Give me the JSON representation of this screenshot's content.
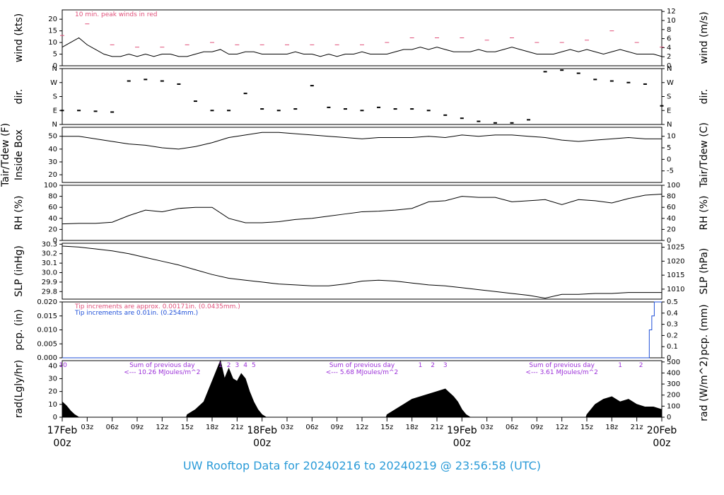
{
  "chart_data": [
    {
      "id": "wind",
      "type": "line",
      "ylabel_left": "wind (kts)",
      "ylabel_right": "wind (m/s)",
      "left_ticks": [
        "0",
        "5",
        "10",
        "15",
        "20"
      ],
      "right_ticks": [
        "0",
        "2",
        "4",
        "6",
        "8",
        "10",
        "12"
      ],
      "ylim": [
        0,
        24
      ],
      "annotation": "10 min. peak winds in red",
      "series": [
        {
          "color": "#000000",
          "x": [
            0,
            1,
            2,
            3,
            4,
            5,
            6,
            7,
            8,
            9,
            10,
            11,
            12,
            13,
            14,
            15,
            16,
            17,
            18,
            19,
            20,
            21,
            22,
            23,
            24,
            25,
            26,
            27,
            28,
            29,
            30,
            31,
            32,
            33,
            34,
            35,
            36,
            37,
            38,
            39,
            40,
            41,
            42,
            43,
            44,
            45,
            46,
            47,
            48,
            49,
            50,
            51,
            52,
            53,
            54,
            55,
            56,
            57,
            58,
            59,
            60,
            61,
            62,
            63,
            64,
            65,
            66,
            67,
            68,
            69,
            70,
            71,
            72
          ],
          "y": [
            8,
            10,
            12,
            9,
            7,
            5,
            4,
            4,
            5,
            4,
            5,
            4,
            5,
            5,
            4,
            4,
            5,
            6,
            6,
            7,
            5,
            5,
            6,
            6,
            5,
            5,
            5,
            5,
            6,
            5,
            5,
            4,
            5,
            4,
            5,
            5,
            6,
            5,
            5,
            5,
            6,
            7,
            7,
            8,
            7,
            8,
            7,
            6,
            6,
            6,
            7,
            6,
            6,
            7,
            8,
            7,
            6,
            5,
            5,
            5,
            6,
            7,
            6,
            7,
            6,
            5,
            6,
            7,
            6,
            5,
            5,
            5,
            4
          ]
        },
        {
          "color": "#e0507a",
          "x": [
            0,
            3,
            6,
            9,
            12,
            15,
            18,
            21,
            24,
            27,
            30,
            33,
            36,
            39,
            42,
            45,
            48,
            51,
            54,
            57,
            60,
            63,
            66,
            69,
            72
          ],
          "y": [
            13,
            18,
            9,
            8,
            8,
            9,
            10,
            9,
            9,
            9,
            9,
            9,
            9,
            10,
            12,
            12,
            12,
            11,
            12,
            10,
            10,
            11,
            15,
            10,
            8
          ]
        }
      ]
    },
    {
      "id": "dir",
      "type": "scatter",
      "ylabel_left": "dir.",
      "ylabel_right": "dir.",
      "left_ticks": [
        "N",
        "E",
        "S",
        "W",
        "N"
      ],
      "right_ticks": [
        "N",
        "E",
        "S",
        "W",
        "N"
      ],
      "ylim": [
        0,
        360
      ],
      "x": [
        0,
        2,
        4,
        6,
        8,
        10,
        12,
        14,
        16,
        18,
        20,
        22,
        24,
        26,
        28,
        30,
        32,
        34,
        36,
        38,
        40,
        42,
        44,
        46,
        48,
        50,
        52,
        54,
        56,
        58,
        60,
        62,
        64,
        66,
        68,
        70,
        72
      ],
      "y": [
        90,
        90,
        85,
        80,
        280,
        290,
        280,
        260,
        150,
        90,
        90,
        200,
        100,
        90,
        100,
        250,
        110,
        100,
        90,
        110,
        100,
        100,
        90,
        60,
        40,
        20,
        10,
        10,
        30,
        340,
        350,
        330,
        290,
        280,
        270,
        260,
        120
      ]
    },
    {
      "id": "temp",
      "type": "line",
      "ylabel_left": [
        "Tair/Tdew (F)",
        "Inside Box"
      ],
      "ylabel_right": "Tair/Tdew (C)",
      "left_ticks": [
        "20",
        "30",
        "40",
        "50"
      ],
      "right_ticks": [
        "-5",
        "0",
        "5",
        "10"
      ],
      "ylim": [
        14,
        57
      ],
      "series": [
        {
          "color": "#000000",
          "x": [
            0,
            2,
            4,
            6,
            8,
            10,
            12,
            14,
            16,
            18,
            20,
            22,
            24,
            26,
            28,
            30,
            32,
            34,
            36,
            38,
            40,
            42,
            44,
            46,
            48,
            50,
            52,
            54,
            56,
            58,
            60,
            62,
            64,
            66,
            68,
            70,
            72
          ],
          "y": [
            50,
            50,
            48,
            46,
            44,
            43,
            41,
            40,
            42,
            45,
            49,
            51,
            53,
            53,
            52,
            51,
            50,
            49,
            48,
            49,
            49,
            49,
            50,
            49,
            51,
            50,
            51,
            51,
            50,
            49,
            47,
            46,
            47,
            48,
            49,
            48,
            48
          ]
        }
      ]
    },
    {
      "id": "rh",
      "type": "line",
      "ylabel_left": "RH (%)",
      "ylabel_right": "RH (%)",
      "left_ticks": [
        "0",
        "20",
        "40",
        "60",
        "80",
        "100"
      ],
      "right_ticks": [
        "0",
        "20",
        "40",
        "60",
        "80",
        "100"
      ],
      "ylim": [
        0,
        100
      ],
      "series": [
        {
          "color": "#000000",
          "x": [
            0,
            2,
            4,
            6,
            8,
            10,
            12,
            14,
            16,
            18,
            20,
            22,
            24,
            26,
            28,
            30,
            32,
            34,
            36,
            38,
            40,
            42,
            44,
            46,
            48,
            50,
            52,
            54,
            56,
            58,
            60,
            62,
            64,
            66,
            68,
            70,
            72
          ],
          "y": [
            30,
            31,
            31,
            33,
            45,
            55,
            52,
            58,
            60,
            60,
            40,
            32,
            32,
            34,
            38,
            40,
            44,
            48,
            52,
            53,
            55,
            58,
            70,
            72,
            80,
            78,
            78,
            70,
            72,
            74,
            65,
            74,
            72,
            68,
            76,
            82,
            84
          ]
        }
      ]
    },
    {
      "id": "slp",
      "type": "line",
      "ylabel_left": "SLP (inHg)",
      "ylabel_right": "SLP (hPa)",
      "left_ticks": [
        "29.8",
        "29.9",
        "30.0",
        "30.1",
        "30.2",
        "30.3"
      ],
      "right_ticks": [
        "1010",
        "1015",
        "1020",
        "1025"
      ],
      "ylim": [
        29.72,
        30.31
      ],
      "series": [
        {
          "color": "#000000",
          "x": [
            0,
            2,
            4,
            6,
            8,
            10,
            12,
            14,
            16,
            18,
            20,
            22,
            24,
            26,
            28,
            30,
            32,
            34,
            36,
            38,
            40,
            42,
            44,
            46,
            48,
            50,
            52,
            54,
            56,
            58,
            60,
            62,
            64,
            66,
            68,
            70,
            72
          ],
          "y": [
            30.28,
            30.27,
            30.25,
            30.23,
            30.2,
            30.16,
            30.12,
            30.08,
            30.03,
            29.98,
            29.94,
            29.92,
            29.9,
            29.88,
            29.87,
            29.86,
            29.86,
            29.88,
            29.91,
            29.92,
            29.91,
            29.89,
            29.87,
            29.86,
            29.84,
            29.82,
            29.8,
            29.78,
            29.76,
            29.73,
            29.77,
            29.77,
            29.78,
            29.78,
            29.79,
            29.79,
            29.79
          ]
        }
      ]
    },
    {
      "id": "pcp",
      "type": "line",
      "ylabel_left": "pcp. (in)",
      "ylabel_right": "pcp. (mm)",
      "left_ticks": [
        "0.000",
        "0.005",
        "0.010",
        "0.015",
        "0.020"
      ],
      "right_ticks": [
        "0",
        "0.1",
        "0.2",
        "0.3",
        "0.4",
        "0.5"
      ],
      "ylim": [
        0,
        0.02
      ],
      "note_red": "Tip increments are approx. 0.00171in. (0.0435mm.)",
      "note_blue": "Tip increments are 0.01in. (0.254mm.)",
      "series": [
        {
          "color": "#1e4fd8",
          "x": [
            0,
            70.5,
            70.5,
            70.8,
            70.8,
            71.1,
            71.1,
            72
          ],
          "y": [
            0,
            0,
            0.01,
            0.01,
            0.015,
            0.015,
            0.02,
            0.02
          ]
        }
      ]
    },
    {
      "id": "rad",
      "type": "area",
      "ylabel_left": "rad(Lgly/hr)",
      "ylabel_right": "rad (W/m^2)",
      "left_ticks": [
        "0",
        "10",
        "20",
        "30",
        "40"
      ],
      "right_ticks": [
        "0",
        "100",
        "200",
        "300",
        "400",
        "500"
      ],
      "ylim": [
        0,
        44
      ],
      "series": [
        {
          "color": "#000000",
          "x": [
            0,
            0.5,
            1,
            1.5,
            2,
            14.9,
            15,
            16,
            17,
            17.5,
            18,
            18.5,
            19,
            19.5,
            20,
            20.5,
            21,
            21.5,
            22,
            22.5,
            23,
            23.5,
            24,
            24.5,
            38.9,
            39,
            40,
            41,
            42,
            43,
            44,
            45,
            46,
            47,
            47.5,
            48,
            48.5,
            49,
            62.9,
            63,
            64,
            65,
            66,
            67,
            68,
            69,
            70,
            71,
            72
          ],
          "y": [
            12,
            9,
            5,
            2,
            0,
            0,
            2,
            6,
            12,
            20,
            28,
            36,
            44,
            30,
            38,
            30,
            28,
            34,
            30,
            20,
            12,
            6,
            2,
            0,
            0,
            2,
            6,
            10,
            14,
            16,
            18,
            20,
            22,
            16,
            12,
            6,
            2,
            0,
            0,
            2,
            10,
            14,
            16,
            12,
            14,
            10,
            8,
            8,
            6
          ]
        }
      ]
    }
  ],
  "rad_sums": [
    {
      "text": "Sum of previous day",
      "value": "<--- 10.26 MJoules/m^2"
    },
    {
      "text": "Sum of previous day",
      "value": "<--- 5.68 MJoules/m^2"
    },
    {
      "text": "Sum of previous day",
      "value": "<--- 3.61 MJoules/m^2"
    }
  ],
  "hour_markers": [
    {
      "label": "10",
      "x": 0.1
    },
    {
      "label": "1",
      "x": 19
    },
    {
      "label": "2",
      "x": 20
    },
    {
      "label": "3",
      "x": 21
    },
    {
      "label": "4",
      "x": 22
    },
    {
      "label": "5",
      "x": 23
    },
    {
      "label": "1",
      "x": 43
    },
    {
      "label": "2",
      "x": 44.5
    },
    {
      "label": "3",
      "x": 46
    },
    {
      "label": "1",
      "x": 67
    },
    {
      "label": "2",
      "x": 69.5
    }
  ],
  "x_ticks": [
    "03z",
    "06z",
    "09z",
    "12z",
    "15z",
    "18z",
    "21z",
    "03z",
    "06z",
    "09z",
    "12z",
    "15z",
    "18z",
    "21z",
    "03z",
    "06z",
    "09z",
    "12z",
    "15z",
    "18z",
    "21z"
  ],
  "day_labels": [
    {
      "date": "17Feb",
      "time": "00z"
    },
    {
      "date": "18Feb",
      "time": "00z"
    },
    {
      "date": "19Feb",
      "time": "00z"
    },
    {
      "date": "20Feb",
      "time": "00z"
    }
  ],
  "footer": "UW Rooftop Data for 20240216  to  20240219 @ 23:56:58  (UTC)",
  "colors": {
    "accent_red": "#e0507a",
    "title_blue": "#2a9bd8",
    "rad_purple": "#9b30d8",
    "pcp_blue": "#1e4fd8"
  }
}
